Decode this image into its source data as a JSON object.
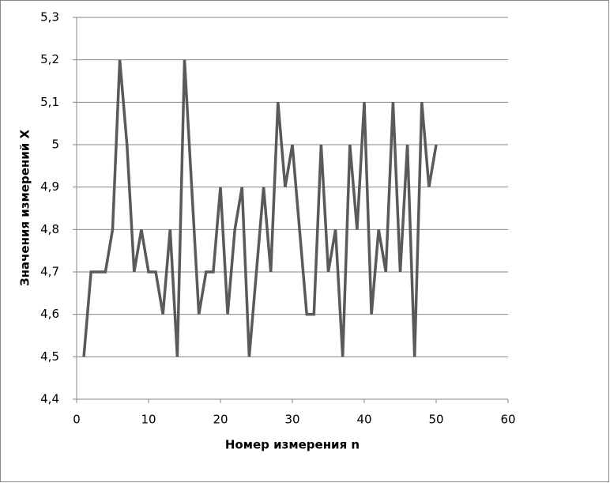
{
  "chart_data": {
    "type": "line",
    "x_label": "Номер измерения n",
    "y_label": "Значения измерений  X",
    "x": [
      1,
      2,
      3,
      4,
      5,
      6,
      7,
      8,
      9,
      10,
      11,
      12,
      13,
      14,
      15,
      16,
      17,
      18,
      19,
      20,
      21,
      22,
      23,
      24,
      25,
      26,
      27,
      28,
      29,
      30,
      31,
      32,
      33,
      34,
      35,
      36,
      37,
      38,
      39,
      40,
      41,
      42,
      43,
      44,
      45,
      46,
      47,
      48,
      49,
      50
    ],
    "series": [
      {
        "color": "#5a5a5a",
        "values": [
          4.5,
          4.7,
          4.7,
          4.7,
          4.8,
          5.2,
          5.0,
          4.7,
          4.8,
          4.7,
          4.7,
          4.6,
          4.8,
          4.5,
          5.2,
          4.9,
          4.6,
          4.7,
          4.7,
          4.9,
          4.6,
          4.8,
          4.9,
          4.5,
          4.7,
          4.9,
          4.7,
          5.1,
          4.9,
          5.0,
          4.8,
          4.6,
          4.6,
          5.0,
          4.7,
          4.8,
          4.5,
          5.0,
          4.8,
          5.1,
          4.6,
          4.8,
          4.7,
          5.1,
          4.7,
          5.0,
          4.5,
          5.1,
          4.9,
          5.0
        ]
      }
    ],
    "xlim": [
      0,
      60
    ],
    "xticks": [
      0,
      10,
      20,
      30,
      40,
      50,
      60
    ],
    "ylim": [
      4.4,
      5.3
    ],
    "yticks": [
      {
        "value": 4.4,
        "label": "4,4"
      },
      {
        "value": 4.5,
        "label": "4,5"
      },
      {
        "value": 4.6,
        "label": "4,6"
      },
      {
        "value": 4.7,
        "label": "4,7"
      },
      {
        "value": 4.8,
        "label": "4,8"
      },
      {
        "value": 4.9,
        "label": "4,9"
      },
      5,
      {
        "value": 5.1,
        "label": "5,1"
      },
      {
        "value": 5.2,
        "label": "5,2"
      },
      {
        "value": 5.3,
        "label": "5,3"
      }
    ],
    "grid": true
  }
}
